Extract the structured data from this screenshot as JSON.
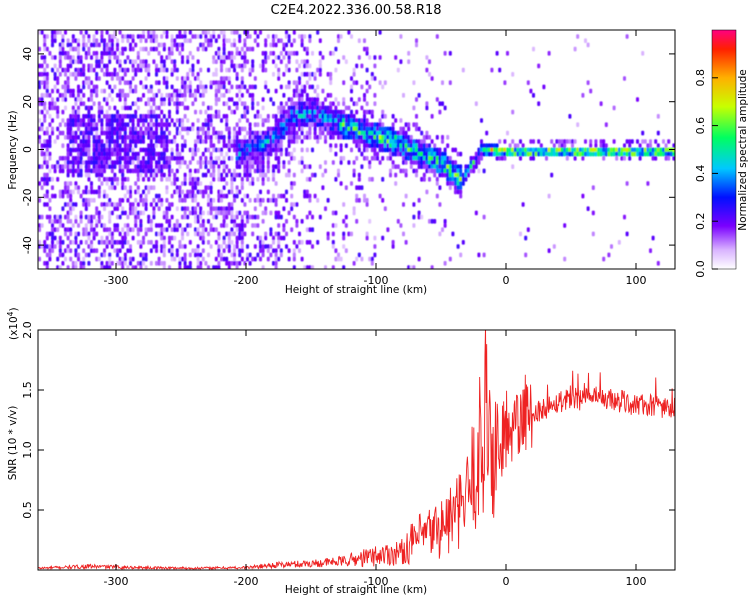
{
  "page": {
    "title": "C2E4.2022.336.00.58.R18"
  },
  "chart_data": [
    {
      "type": "heatmap",
      "name": "spectrogram",
      "xlabel": "Height of straight line (km)",
      "ylabel": "Frequency (Hz)",
      "xlim": [
        -360,
        130
      ],
      "ylim": [
        -50,
        50
      ],
      "xticks": [
        -300,
        -200,
        -100,
        0,
        100
      ],
      "yticks": [
        -40,
        -20,
        0,
        20,
        40
      ],
      "colorbar": {
        "label": "Normalized spectral amplitude",
        "range": [
          0,
          1
        ],
        "ticks": [
          0.0,
          0.2,
          0.4,
          0.6,
          0.8
        ],
        "tick_labels": [
          "0.0",
          "0.2",
          "0.4",
          "0.6",
          "0.8"
        ]
      },
      "ridge": {
        "x": [
          -200,
          -180,
          -165,
          -150,
          -130,
          -110,
          -90,
          -70,
          -50,
          -35,
          -20,
          0,
          50,
          130
        ],
        "y": [
          0,
          5,
          15,
          16,
          12,
          8,
          5,
          0,
          -5,
          -12,
          1,
          0,
          0,
          0
        ]
      },
      "grid": false
    },
    {
      "type": "line",
      "name": "snr",
      "xlabel": "Height of straight line (km)",
      "ylabel": "SNR (10 * v/v)",
      "yscale_label": "(x10",
      "yscale_exponent": "4",
      "yscale_close": ")",
      "xlim": [
        -360,
        130
      ],
      "ylim": [
        0,
        20000
      ],
      "xticks": [
        -300,
        -200,
        -100,
        0,
        100
      ],
      "yticks": [
        5000,
        10000,
        15000,
        20000
      ],
      "ytick_labels": [
        "0.5",
        "1.0",
        "1.5",
        "2.0"
      ],
      "color": "#ee2222",
      "series": [
        {
          "x": [
            -360,
            -320,
            -280,
            -240,
            -200,
            -180,
            -160,
            -140,
            -120,
            -100,
            -80,
            -70,
            -60,
            -50,
            -40,
            -35,
            -30,
            -25,
            -20,
            -17,
            -15,
            -12,
            -10,
            -5,
            0,
            5,
            10,
            20,
            30,
            40,
            50,
            60,
            70,
            80,
            90,
            100,
            110,
            120,
            130
          ],
          "y": [
            150,
            300,
            200,
            150,
            200,
            400,
            500,
            600,
            800,
            1200,
            1500,
            2500,
            3000,
            3500,
            4500,
            5000,
            6000,
            8000,
            10000,
            12000,
            14000,
            11000,
            9000,
            10000,
            11000,
            11500,
            12000,
            13000,
            13500,
            14000,
            14500,
            14200,
            14300,
            14200,
            14000,
            13800,
            13700,
            13600,
            13500
          ]
        }
      ],
      "grid": false
    }
  ]
}
